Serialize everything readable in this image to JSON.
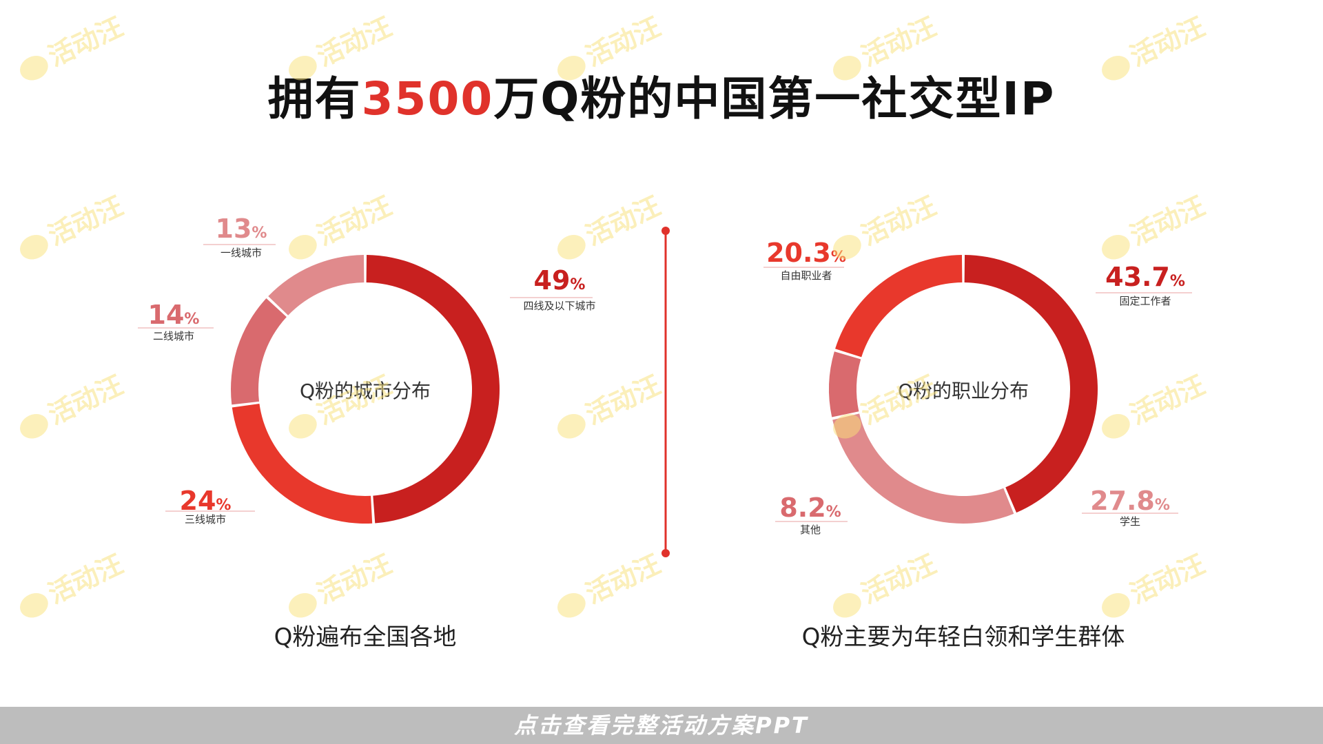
{
  "title": {
    "prefix": "拥有",
    "highlight": "3500",
    "suffix": "万Q粉的中国第一社交型IP"
  },
  "colors": {
    "accent": "#e0322b"
  },
  "chart_data": [
    {
      "type": "pie",
      "title": "Q粉的城市分布",
      "caption": "Q粉遍布全国各地",
      "slices": [
        {
          "label": "四线及以下城市",
          "value": 49,
          "value_text": "49",
          "color": "#c8201f"
        },
        {
          "label": "三线城市",
          "value": 24,
          "value_text": "24",
          "color": "#e8382c"
        },
        {
          "label": "二线城市",
          "value": 14,
          "value_text": "14",
          "color": "#d96a6e"
        },
        {
          "label": "一线城市",
          "value": 13,
          "value_text": "13",
          "color": "#e08a8c"
        }
      ]
    },
    {
      "type": "pie",
      "title": "Q粉的职业分布",
      "caption": "Q粉主要为年轻白领和学生群体",
      "slices": [
        {
          "label": "固定工作者",
          "value": 43.7,
          "value_text": "43.7",
          "color": "#c8201f"
        },
        {
          "label": "学生",
          "value": 27.8,
          "value_text": "27.8",
          "color": "#e08a8c"
        },
        {
          "label": "其他",
          "value": 8.2,
          "value_text": "8.2",
          "color": "#d96a6e"
        },
        {
          "label": "自由职业者",
          "value": 20.3,
          "value_text": "20.3",
          "color": "#e8382c"
        }
      ]
    }
  ],
  "watermark": "活动汪",
  "footer": "点击查看完整活动方案PPT"
}
